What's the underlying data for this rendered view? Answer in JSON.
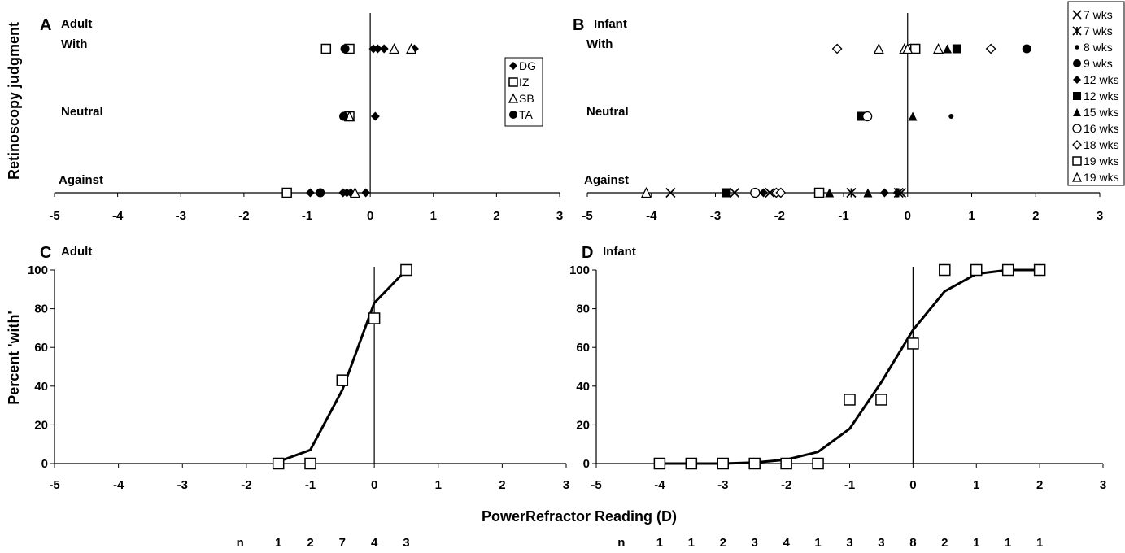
{
  "axis_title_x": "PowerRefractor Reading (D)",
  "axis_title_ya": "Retinoscopy judgment",
  "axis_title_yc": "Percent 'with'",
  "n_label": "n",
  "chart_data": [
    {
      "id": "A",
      "type": "scatter",
      "panel_letter": "A",
      "panel_title": "Adult",
      "xlim": [
        -5,
        3
      ],
      "x_ticks": [
        "-5",
        "-4",
        "-3",
        "-2",
        "-1",
        "0",
        "1",
        "2",
        "3"
      ],
      "categories": [
        "Against",
        "Neutral",
        "With"
      ],
      "legend": [
        "DG",
        "IZ",
        "SB",
        "TA"
      ],
      "series": [
        {
          "name": "DG",
          "marker": "diamond-filled",
          "points": [
            {
              "x": 0.05,
              "y": "With"
            },
            {
              "x": 0.12,
              "y": "With"
            },
            {
              "x": 0.22,
              "y": "With"
            },
            {
              "x": 0.7,
              "y": "With"
            },
            {
              "x": 0.08,
              "y": "Neutral"
            },
            {
              "x": -0.95,
              "y": "Against"
            },
            {
              "x": -0.43,
              "y": "Against"
            },
            {
              "x": -0.37,
              "y": "Against"
            },
            {
              "x": -0.31,
              "y": "Against"
            },
            {
              "x": -0.07,
              "y": "Against"
            }
          ]
        },
        {
          "name": "IZ",
          "marker": "square-open",
          "points": [
            {
              "x": -0.7,
              "y": "With"
            },
            {
              "x": -0.33,
              "y": "With"
            },
            {
              "x": -0.33,
              "y": "Neutral"
            },
            {
              "x": -1.32,
              "y": "Against"
            }
          ]
        },
        {
          "name": "SB",
          "marker": "triangle-open",
          "points": [
            {
              "x": 0.38,
              "y": "With"
            },
            {
              "x": 0.65,
              "y": "With"
            },
            {
              "x": -0.33,
              "y": "Neutral"
            },
            {
              "x": -0.24,
              "y": "Against"
            }
          ]
        },
        {
          "name": "TA",
          "marker": "circle-filled",
          "points": [
            {
              "x": -0.4,
              "y": "With"
            },
            {
              "x": -0.42,
              "y": "Neutral"
            },
            {
              "x": -0.79,
              "y": "Against"
            }
          ]
        }
      ]
    },
    {
      "id": "B",
      "type": "scatter",
      "panel_letter": "B",
      "panel_title": "Infant",
      "xlim": [
        -5,
        3
      ],
      "x_ticks": [
        "-5",
        "-4",
        "-3",
        "-2",
        "-1",
        "0",
        "1",
        "2",
        "3"
      ],
      "categories": [
        "Against",
        "Neutral",
        "With"
      ],
      "legend": [
        "7 wks",
        "7 wks",
        "8 wks",
        "9 wks",
        "12 wks",
        "12 wks",
        "15 wks",
        "16 wks",
        "18 wks",
        "19 wks",
        "19 wks"
      ],
      "series": [
        {
          "name": "7 wks",
          "marker": "x",
          "points": [
            {
              "x": -3.7,
              "y": "Against"
            },
            {
              "x": -2.7,
              "y": "Against"
            },
            {
              "x": -2.15,
              "y": "Against"
            },
            {
              "x": -0.1,
              "y": "Against"
            }
          ]
        },
        {
          "name": "7 wks",
          "marker": "asterisk",
          "points": [
            {
              "x": -0.88,
              "y": "Against"
            },
            {
              "x": -0.14,
              "y": "Against"
            }
          ]
        },
        {
          "name": "8 wks",
          "marker": "dot-small",
          "points": [
            {
              "x": 0.68,
              "y": "Neutral"
            }
          ]
        },
        {
          "name": "9 wks",
          "marker": "circle-filled",
          "points": [
            {
              "x": 1.86,
              "y": "With"
            }
          ]
        },
        {
          "name": "12 wks",
          "marker": "diamond-filled",
          "points": [
            {
              "x": -2.25,
              "y": "Against"
            },
            {
              "x": -0.36,
              "y": "Against"
            },
            {
              "x": -0.16,
              "y": "Against"
            }
          ]
        },
        {
          "name": "12 wks",
          "marker": "square-filled",
          "points": [
            {
              "x": 0.77,
              "y": "With"
            },
            {
              "x": -0.72,
              "y": "Neutral"
            },
            {
              "x": -2.83,
              "y": "Against"
            }
          ]
        },
        {
          "name": "15 wks",
          "marker": "triangle-filled",
          "points": [
            {
              "x": 0.62,
              "y": "With"
            },
            {
              "x": 0.08,
              "y": "Neutral"
            },
            {
              "x": -1.22,
              "y": "Against"
            },
            {
              "x": -0.62,
              "y": "Against"
            }
          ]
        },
        {
          "name": "16 wks",
          "marker": "circle-open",
          "points": [
            {
              "x": 0.05,
              "y": "With"
            },
            {
              "x": -0.63,
              "y": "Neutral"
            },
            {
              "x": -2.38,
              "y": "Against"
            }
          ]
        },
        {
          "name": "18 wks",
          "marker": "diamond-open",
          "points": [
            {
              "x": -1.1,
              "y": "With"
            },
            {
              "x": 0.1,
              "y": "With"
            },
            {
              "x": 1.3,
              "y": "With"
            },
            {
              "x": -2.05,
              "y": "Against"
            },
            {
              "x": -1.98,
              "y": "Against"
            }
          ]
        },
        {
          "name": "19 wks",
          "marker": "square-open",
          "points": [
            {
              "x": 0.12,
              "y": "With"
            },
            {
              "x": -1.38,
              "y": "Against"
            }
          ]
        },
        {
          "name": "19 wks",
          "marker": "triangle-open",
          "points": [
            {
              "x": -0.45,
              "y": "With"
            },
            {
              "x": -0.05,
              "y": "With"
            },
            {
              "x": 0.0,
              "y": "With"
            },
            {
              "x": 0.48,
              "y": "With"
            },
            {
              "x": -4.08,
              "y": "Against"
            }
          ]
        }
      ]
    },
    {
      "id": "C",
      "type": "line",
      "panel_letter": "C",
      "panel_title": "Adult",
      "xlim": [
        -5,
        3
      ],
      "ylim": [
        0,
        100
      ],
      "x_ticks": [
        "-5",
        "-4",
        "-3",
        "-2",
        "-1",
        "0",
        "1",
        "2",
        "3"
      ],
      "y_ticks": [
        "0",
        "20",
        "40",
        "60",
        "80",
        "100"
      ],
      "observed": {
        "marker": "square-open",
        "x": [
          -1.5,
          -1,
          -0.5,
          0,
          0.5
        ],
        "y": [
          0,
          0,
          43,
          75,
          100
        ]
      },
      "fit": {
        "x": [
          -1.5,
          -1,
          -0.5,
          0,
          0.5
        ],
        "y": [
          1,
          7,
          38,
          83,
          100
        ]
      },
      "n": {
        "x": [
          -1.5,
          -1,
          -0.5,
          0,
          0.5
        ],
        "values": [
          "1",
          "2",
          "7",
          "4",
          "3"
        ]
      }
    },
    {
      "id": "D",
      "type": "line",
      "panel_letter": "D",
      "panel_title": "Infant",
      "xlim": [
        -5,
        3
      ],
      "ylim": [
        0,
        100
      ],
      "x_ticks": [
        "-5",
        "-4",
        "-3",
        "-2",
        "-1",
        "0",
        "1",
        "2",
        "3"
      ],
      "y_ticks": [
        "0",
        "20",
        "40",
        "60",
        "80",
        "100"
      ],
      "observed": {
        "marker": "square-open",
        "x": [
          -4,
          -3.5,
          -3,
          -2.5,
          -2,
          -1.5,
          -1,
          -0.5,
          0,
          0.5,
          1,
          1.5,
          2
        ],
        "y": [
          0,
          0,
          0,
          0,
          0,
          0,
          33,
          33,
          62,
          100,
          100,
          100,
          100
        ]
      },
      "fit": {
        "x": [
          -4,
          -3.5,
          -3,
          -2.5,
          -2,
          -1.5,
          -1,
          -0.5,
          0,
          0.5,
          1,
          1.5,
          2
        ],
        "y": [
          0,
          0,
          0,
          0.5,
          2,
          6,
          18,
          42,
          69,
          89,
          98,
          100,
          100
        ]
      },
      "n": {
        "x": [
          -4,
          -3.5,
          -3,
          -2.5,
          -2,
          -1.5,
          -1,
          -0.5,
          0,
          0.5,
          1,
          1.5,
          2
        ],
        "values": [
          "1",
          "1",
          "2",
          "3",
          "4",
          "1",
          "3",
          "3",
          "8",
          "2",
          "1",
          "1",
          "1"
        ]
      }
    }
  ]
}
